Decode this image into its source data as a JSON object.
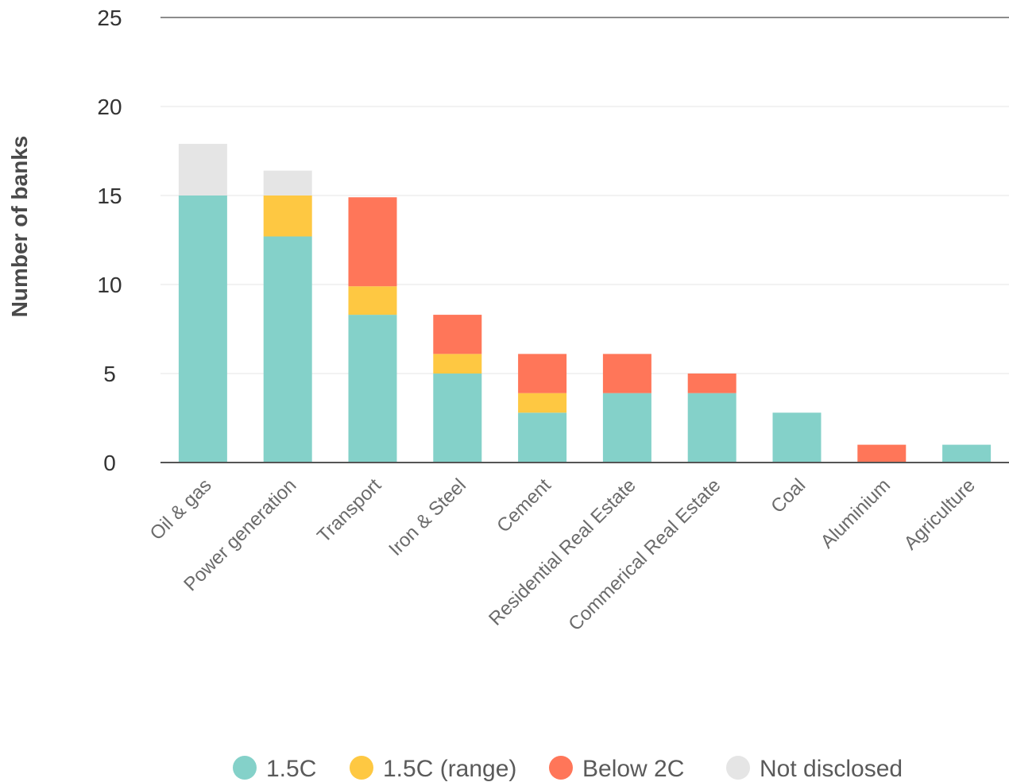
{
  "chart_data": {
    "type": "bar",
    "stacked": true,
    "categories": [
      "Oil & gas",
      "Power generation",
      "Transport",
      "Iron & Steel",
      "Cement",
      "Residential Real Estate",
      "Commerical Real Estate",
      "Coal",
      "Aluminium",
      "Agriculture"
    ],
    "series": [
      {
        "name": "1.5C",
        "color": "#84d1c9",
        "values": [
          15,
          12.7,
          8.3,
          5,
          2.8,
          3.9,
          3.9,
          2.8,
          0,
          1
        ]
      },
      {
        "name": "1.5C (range)",
        "color": "#fec842",
        "values": [
          0,
          2.3,
          1.6,
          1.1,
          1.1,
          0,
          0,
          0,
          0,
          0
        ]
      },
      {
        "name": "Below 2C",
        "color": "#ff7659",
        "values": [
          0,
          0,
          5,
          2.2,
          2.2,
          2.2,
          1.1,
          0,
          1,
          0
        ]
      },
      {
        "name": "Not disclosed",
        "color": "#e5e5e5",
        "values": [
          2.9,
          1.4,
          0,
          0,
          0,
          0,
          0,
          0,
          0,
          0
        ]
      }
    ],
    "ylabel": "Number of banks",
    "xlabel": "",
    "ylim": [
      0,
      25
    ],
    "yticks": [
      0,
      5,
      10,
      15,
      20,
      25
    ],
    "grid": true,
    "legend_position": "bottom"
  }
}
